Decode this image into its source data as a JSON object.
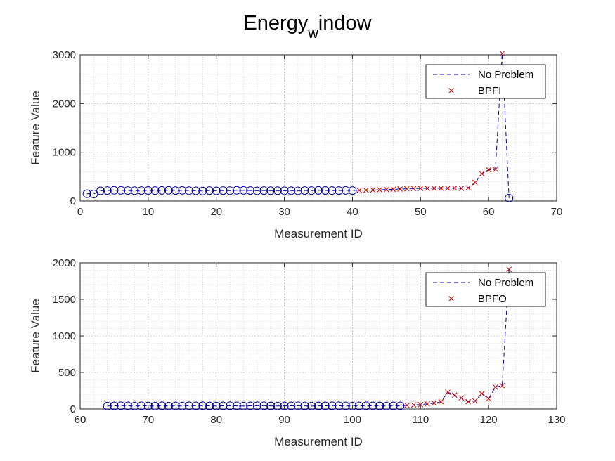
{
  "figure": {
    "title_main": "Energy",
    "title_sub": "w",
    "title_rest": "indow"
  },
  "chart_data": [
    {
      "type": "line",
      "xlabel": "Measurement ID",
      "ylabel": "Feature Value",
      "xlim": [
        0,
        70
      ],
      "ylim": [
        0,
        3000
      ],
      "xticks": [
        0,
        10,
        20,
        30,
        40,
        50,
        60,
        70
      ],
      "yticks": [
        0,
        1000,
        2000,
        3000
      ],
      "grid": true,
      "minor_grid": true,
      "legend_position": "top-right",
      "legend": [
        {
          "label": "No Problem",
          "style": "dashed-line",
          "color": "#0000a0"
        },
        {
          "label": "BPFI",
          "style": "x-marker",
          "color": "#cc0000"
        }
      ],
      "line": {
        "name": "No Problem",
        "style": "dashed",
        "color": "#0000a0",
        "x": [
          1,
          2,
          3,
          4,
          5,
          6,
          7,
          8,
          9,
          10,
          11,
          12,
          13,
          14,
          15,
          16,
          17,
          18,
          19,
          20,
          21,
          22,
          23,
          24,
          25,
          26,
          27,
          28,
          29,
          30,
          31,
          32,
          33,
          34,
          35,
          36,
          37,
          38,
          39,
          40,
          41,
          42,
          43,
          44,
          45,
          46,
          47,
          48,
          49,
          50,
          51,
          52,
          53,
          54,
          55,
          56,
          57,
          58,
          59,
          60,
          61,
          62,
          63
        ],
        "y": [
          150,
          145,
          210,
          215,
          220,
          218,
          215,
          212,
          215,
          216,
          214,
          218,
          220,
          215,
          218,
          212,
          210,
          205,
          215,
          210,
          215,
          212,
          220,
          218,
          215,
          210,
          215,
          212,
          213,
          211,
          212,
          210,
          215,
          214,
          218,
          216,
          214,
          215,
          218,
          215,
          220,
          222,
          225,
          230,
          235,
          240,
          245,
          250,
          255,
          258,
          260,
          262,
          263,
          262,
          265,
          260,
          270,
          380,
          560,
          640,
          650,
          3030,
          60
        ]
      },
      "circles": {
        "color": "#0000a0",
        "x": [
          1,
          2,
          3,
          4,
          5,
          6,
          7,
          8,
          9,
          10,
          11,
          12,
          13,
          14,
          15,
          16,
          17,
          18,
          19,
          20,
          21,
          22,
          23,
          24,
          25,
          26,
          27,
          28,
          29,
          30,
          31,
          32,
          33,
          34,
          35,
          36,
          37,
          38,
          39,
          40,
          63
        ],
        "y": [
          150,
          145,
          210,
          215,
          220,
          218,
          215,
          212,
          215,
          216,
          214,
          218,
          220,
          215,
          218,
          212,
          210,
          205,
          215,
          210,
          215,
          212,
          220,
          218,
          215,
          210,
          215,
          212,
          213,
          211,
          212,
          210,
          215,
          214,
          218,
          216,
          214,
          215,
          218,
          215,
          60
        ]
      },
      "markers": {
        "name": "BPFI",
        "color": "#cc0000",
        "x": [
          41,
          42,
          43,
          44,
          45,
          46,
          47,
          48,
          49,
          50,
          51,
          52,
          53,
          54,
          55,
          56,
          57,
          58,
          59,
          60,
          61,
          62
        ],
        "y": [
          220,
          222,
          225,
          230,
          235,
          240,
          245,
          250,
          255,
          258,
          260,
          262,
          263,
          262,
          265,
          260,
          270,
          380,
          560,
          640,
          650,
          3030
        ]
      }
    },
    {
      "type": "line",
      "xlabel": "Measurement ID",
      "ylabel": "Feature Value",
      "xlim": [
        60,
        130
      ],
      "ylim": [
        0,
        2000
      ],
      "xticks": [
        60,
        70,
        80,
        90,
        100,
        110,
        120,
        130
      ],
      "yticks": [
        0,
        500,
        1000,
        1500,
        2000
      ],
      "grid": true,
      "minor_grid": true,
      "legend_position": "top-right",
      "legend": [
        {
          "label": "No Problem",
          "style": "dashed-line",
          "color": "#0000a0"
        },
        {
          "label": "BPFO",
          "style": "x-marker",
          "color": "#cc0000"
        }
      ],
      "line": {
        "name": "No Problem",
        "style": "dashed",
        "color": "#0000a0",
        "x": [
          64,
          65,
          66,
          67,
          68,
          69,
          70,
          71,
          72,
          73,
          74,
          75,
          76,
          77,
          78,
          79,
          80,
          81,
          82,
          83,
          84,
          85,
          86,
          87,
          88,
          89,
          90,
          91,
          92,
          93,
          94,
          95,
          96,
          97,
          98,
          99,
          100,
          101,
          102,
          103,
          104,
          105,
          106,
          107,
          108,
          109,
          110,
          111,
          112,
          113,
          114,
          115,
          116,
          117,
          118,
          119,
          120,
          121,
          122,
          123
        ],
        "y": [
          40,
          42,
          45,
          43,
          40,
          44,
          42,
          38,
          45,
          40,
          42,
          40,
          44,
          43,
          45,
          42,
          40,
          43,
          45,
          42,
          40,
          43,
          45,
          44,
          42,
          40,
          42,
          43,
          44,
          42,
          40,
          42,
          43,
          45,
          44,
          42,
          40,
          42,
          44,
          43,
          42,
          40,
          42,
          43,
          50,
          55,
          60,
          70,
          80,
          100,
          230,
          190,
          150,
          100,
          110,
          210,
          140,
          300,
          320,
          1910
        ]
      },
      "circles": {
        "color": "#0000a0",
        "x": [
          64,
          65,
          66,
          67,
          68,
          69,
          70,
          71,
          72,
          73,
          74,
          75,
          76,
          77,
          78,
          79,
          80,
          81,
          82,
          83,
          84,
          85,
          86,
          87,
          88,
          89,
          90,
          91,
          92,
          93,
          94,
          95,
          96,
          97,
          98,
          99,
          100,
          101,
          102,
          103,
          104,
          105,
          106,
          107
        ],
        "y": [
          40,
          42,
          45,
          43,
          40,
          44,
          42,
          38,
          45,
          40,
          42,
          40,
          44,
          43,
          45,
          42,
          40,
          43,
          45,
          42,
          40,
          43,
          45,
          44,
          42,
          40,
          42,
          43,
          44,
          42,
          40,
          42,
          43,
          45,
          44,
          42,
          40,
          42,
          44,
          43,
          42,
          40,
          42,
          43
        ]
      },
      "markers": {
        "name": "BPFO",
        "color": "#cc0000",
        "x": [
          108,
          109,
          110,
          111,
          112,
          113,
          114,
          115,
          116,
          117,
          118,
          119,
          120,
          121,
          122,
          123
        ],
        "y": [
          50,
          55,
          60,
          70,
          80,
          100,
          230,
          190,
          150,
          100,
          110,
          210,
          140,
          300,
          320,
          1910
        ]
      }
    }
  ]
}
